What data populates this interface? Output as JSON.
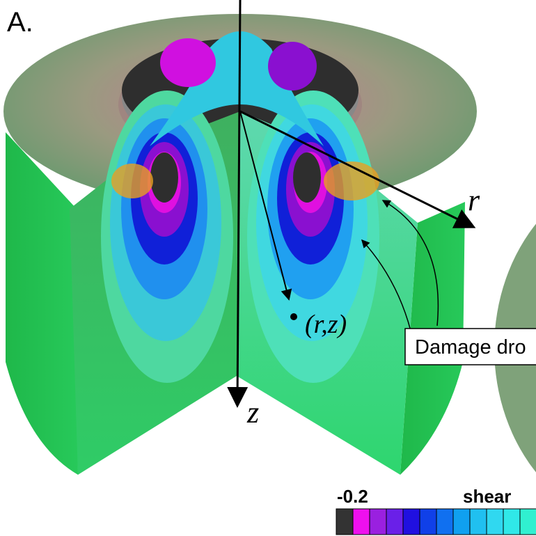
{
  "panel_label": "A.",
  "axes": {
    "r_label": "r",
    "z_label": "z",
    "point_label": "(r,z)"
  },
  "callout": {
    "text": "Damage dro"
  },
  "colorbar": {
    "min_label": "-0.2",
    "title": "shear"
  }
}
